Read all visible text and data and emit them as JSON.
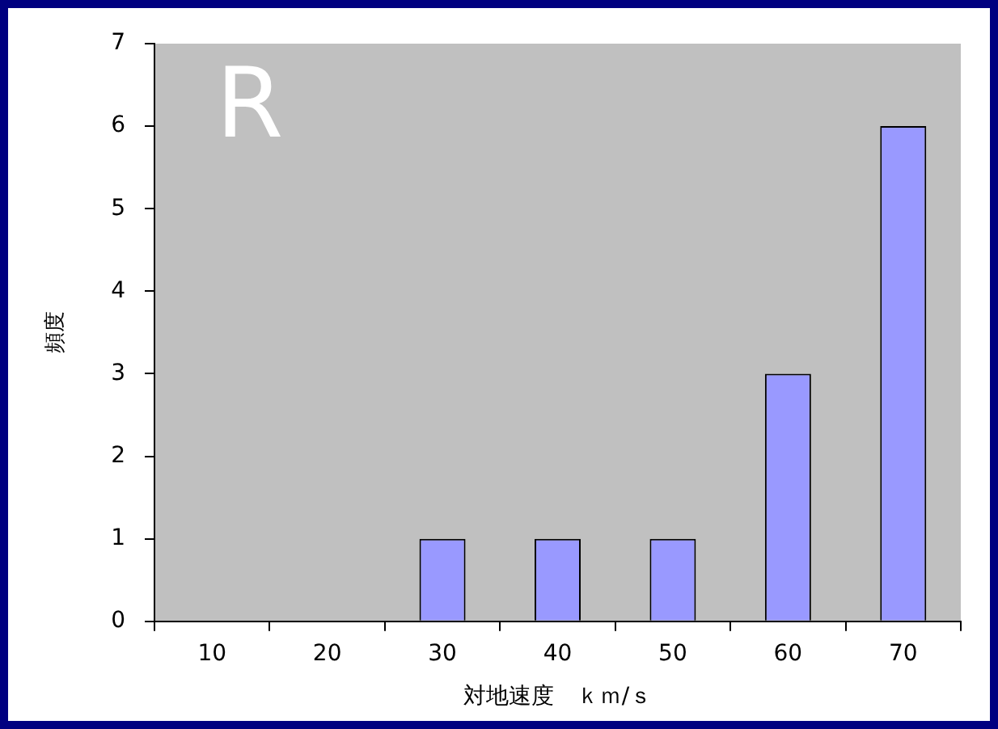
{
  "chart_data": {
    "type": "bar",
    "xlabel": "対地速度　ｋｍ/ｓ",
    "ylabel": "頻度",
    "categories": [
      "10",
      "20",
      "30",
      "40",
      "50",
      "60",
      "70"
    ],
    "values": [
      0,
      0,
      1,
      1,
      1,
      3,
      6
    ],
    "color": "#9999ff",
    "ylim": [
      0,
      7
    ],
    "yticks": [
      0,
      1,
      2,
      3,
      4,
      5,
      6,
      7
    ],
    "grid": false,
    "legend": false,
    "annotations": [
      "R"
    ]
  }
}
